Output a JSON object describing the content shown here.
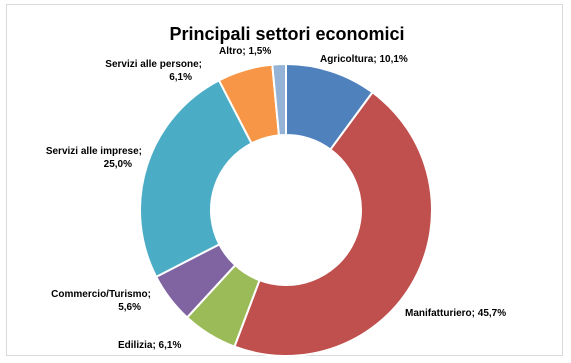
{
  "chart_data": {
    "type": "donut",
    "title": "Principali settori economici",
    "slices": [
      {
        "name": "Agricoltura",
        "value": 10.1,
        "color": "#4f81bd",
        "label_lines": [
          "Agricoltura; 10,1%"
        ]
      },
      {
        "name": "Manifatturiero",
        "value": 45.7,
        "color": "#c0504d",
        "label_lines": [
          "Manifatturiero; 45,7%"
        ]
      },
      {
        "name": "Edilizia",
        "value": 6.1,
        "color": "#9bbb59",
        "label_lines": [
          "Edilizia; 6,1%"
        ]
      },
      {
        "name": "Commercio/Turismo",
        "value": 5.6,
        "color": "#8064a2",
        "label_lines": [
          "Commercio/Turismo;",
          "5,6%"
        ]
      },
      {
        "name": "Servizi alle imprese",
        "value": 25.0,
        "color": "#4bacc6",
        "label_lines": [
          "Servizi alle imprese;",
          "25,0%"
        ]
      },
      {
        "name": "Servizi alle persone",
        "value": 6.1,
        "color": "#f79646",
        "label_lines": [
          "Servizi alle persone;",
          "6,1%"
        ]
      },
      {
        "name": "Altro",
        "value": 1.5,
        "color": "#95b3d7",
        "label_lines": [
          "Altro; 1,5%"
        ]
      }
    ]
  }
}
